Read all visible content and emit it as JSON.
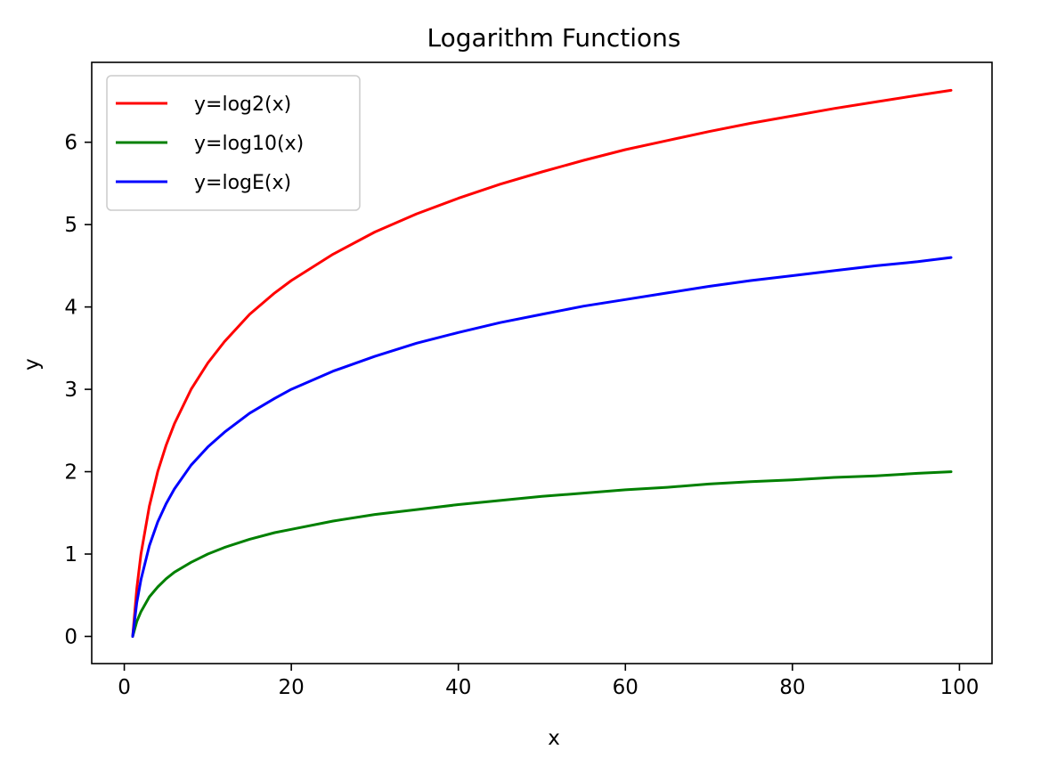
{
  "chart_data": {
    "type": "line",
    "title": "Logarithm Functions",
    "xlabel": "x",
    "ylabel": "y",
    "xlim": [
      -3.9,
      103.9
    ],
    "ylim": [
      -0.33,
      6.97
    ],
    "xticks": [
      0,
      20,
      40,
      60,
      80,
      100
    ],
    "yticks": [
      0,
      1,
      2,
      3,
      4,
      5,
      6
    ],
    "grid": false,
    "legend_position": "upper-left",
    "x": [
      1,
      1.5,
      2,
      3,
      4,
      5,
      6,
      8,
      10,
      12,
      15,
      18,
      20,
      25,
      30,
      35,
      40,
      45,
      50,
      55,
      60,
      65,
      70,
      75,
      80,
      85,
      90,
      95,
      99
    ],
    "series": [
      {
        "name": "y=log2(x)",
        "color": "#ff0000",
        "values": [
          0,
          0.58,
          1.0,
          1.58,
          2.0,
          2.32,
          2.58,
          3.0,
          3.32,
          3.58,
          3.91,
          4.17,
          4.32,
          4.64,
          4.91,
          5.13,
          5.32,
          5.49,
          5.64,
          5.78,
          5.91,
          6.02,
          6.13,
          6.23,
          6.32,
          6.41,
          6.49,
          6.57,
          6.63
        ]
      },
      {
        "name": "y=log10(x)",
        "color": "#008000",
        "values": [
          0,
          0.18,
          0.3,
          0.48,
          0.6,
          0.7,
          0.78,
          0.9,
          1.0,
          1.08,
          1.18,
          1.26,
          1.3,
          1.4,
          1.48,
          1.54,
          1.6,
          1.65,
          1.7,
          1.74,
          1.78,
          1.81,
          1.85,
          1.88,
          1.9,
          1.93,
          1.95,
          1.98,
          2.0
        ]
      },
      {
        "name": "y=logE(x)",
        "color": "#0000ff",
        "values": [
          0,
          0.41,
          0.69,
          1.1,
          1.39,
          1.61,
          1.79,
          2.08,
          2.3,
          2.48,
          2.71,
          2.89,
          3.0,
          3.22,
          3.4,
          3.56,
          3.69,
          3.81,
          3.91,
          4.01,
          4.09,
          4.17,
          4.25,
          4.32,
          4.38,
          4.44,
          4.5,
          4.55,
          4.6
        ]
      }
    ]
  }
}
